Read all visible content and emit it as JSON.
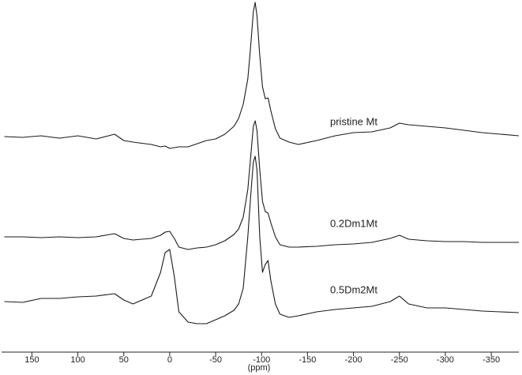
{
  "chart_data": {
    "type": "line",
    "xlabel": "(ppm)",
    "x": [
      180,
      160,
      140,
      120,
      100,
      80,
      60,
      50,
      40,
      20,
      10,
      5,
      0,
      -5,
      -10,
      -20,
      -30,
      -40,
      -50,
      -60,
      -70,
      -75,
      -80,
      -85,
      -88,
      -91,
      -93,
      -95,
      -98,
      -101,
      -104,
      -107,
      -110,
      -115,
      -120,
      -130,
      -140,
      -160,
      -180,
      -200,
      -220,
      -240,
      -250,
      -260,
      -280,
      -300,
      -320,
      -340,
      -360,
      -380
    ],
    "xlim": [
      183,
      -380
    ],
    "xticks": [
      150,
      100,
      50,
      0,
      -50,
      -100,
      -150,
      -200,
      -250,
      -300,
      -350
    ],
    "ylim": [
      0,
      446
    ],
    "series": [
      {
        "name": "pristine Mt",
        "color": "#1a1a1a",
        "values": [
          273,
          272,
          274,
          271,
          274,
          270,
          276,
          268,
          266,
          263,
          260,
          261,
          258,
          259,
          260,
          260,
          264,
          268,
          270,
          276,
          286,
          296,
          314,
          346,
          386,
          431,
          443,
          426,
          376,
          336,
          321,
          322,
          306,
          283,
          271,
          266,
          263,
          268,
          274,
          278,
          279,
          284,
          290,
          288,
          286,
          284,
          281,
          278,
          276,
          274
        ]
      },
      {
        "name": "0.2Dm1Mt",
        "color": "#1a1a1a",
        "values": [
          146,
          146,
          145,
          146,
          145,
          146,
          150,
          144,
          142,
          144,
          148,
          152,
          153,
          144,
          133,
          130,
          132,
          133,
          136,
          141,
          149,
          156,
          171,
          206,
          246,
          286,
          293,
          281,
          231,
          191,
          178,
          176,
          164,
          146,
          136,
          133,
          133,
          134,
          136,
          137,
          139,
          144,
          148,
          143,
          141,
          140,
          140,
          139,
          139,
          139
        ]
      },
      {
        "name": "0.5Dm2Mt",
        "color": "#1a1a1a",
        "values": [
          64,
          63,
          68,
          68,
          70,
          71,
          74,
          66,
          61,
          71,
          101,
          126,
          130,
          96,
          51,
          38,
          36,
          36,
          41,
          46,
          53,
          61,
          81,
          146,
          196,
          241,
          248,
          231,
          146,
          101,
          111,
          116,
          91,
          61,
          48,
          44,
          46,
          51,
          54,
          56,
          58,
          64,
          71,
          61,
          56,
          56,
          54,
          52,
          51,
          50
        ]
      }
    ]
  }
}
